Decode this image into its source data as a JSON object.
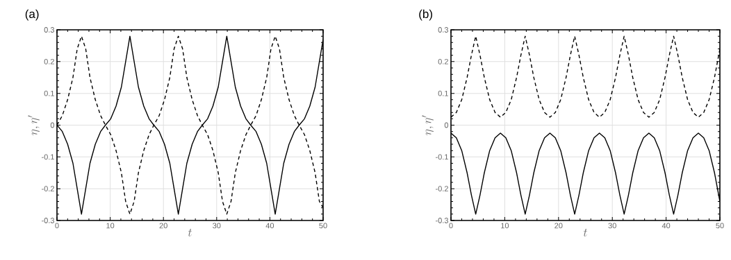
{
  "chart_data": [
    {
      "type": "line",
      "title": "(a)",
      "xlabel": "t",
      "ylabel": "\\eta, \\eta'",
      "grid": true,
      "xlim": [
        0,
        50
      ],
      "ylim": [
        -0.3,
        0.3
      ],
      "xticks": [
        0,
        10,
        20,
        30,
        40,
        50
      ],
      "yticks": [
        -0.3,
        -0.2,
        -0.1,
        0,
        0.1,
        0.2,
        0.3
      ],
      "x": [
        0,
        1,
        2,
        3,
        3.8,
        4.6,
        5.4,
        6.2,
        7.2,
        8.2,
        9.1,
        10.1,
        11.1,
        12.1,
        12.9,
        13.7,
        14.5,
        15.3,
        16.3,
        17.3,
        18.2,
        19.2,
        20.2,
        21.2,
        22,
        22.8,
        23.6,
        24.4,
        25.4,
        26.4,
        27.3,
        28.3,
        29.3,
        30.3,
        31.1,
        31.9,
        32.7,
        33.5,
        34.5,
        35.5,
        36.4,
        37.4,
        38.4,
        39.4,
        40.2,
        41,
        41.8,
        42.6,
        43.6,
        44.6,
        45.5,
        46.5,
        47.5,
        48.5,
        49.3,
        50
      ],
      "series": [
        {
          "color": "#000000",
          "line_style": "solid",
          "values": [
            0,
            -0.02,
            -0.06,
            -0.12,
            -0.2,
            -0.28,
            -0.2,
            -0.12,
            -0.06,
            -0.02,
            0,
            0.02,
            0.06,
            0.12,
            0.2,
            0.28,
            0.2,
            0.12,
            0.06,
            0.02,
            0,
            -0.02,
            -0.06,
            -0.12,
            -0.2,
            -0.28,
            -0.2,
            -0.12,
            -0.06,
            -0.02,
            0,
            0.02,
            0.06,
            0.12,
            0.2,
            0.28,
            0.2,
            0.12,
            0.06,
            0.02,
            0,
            -0.02,
            -0.06,
            -0.12,
            -0.2,
            -0.28,
            -0.2,
            -0.12,
            -0.06,
            -0.02,
            0,
            0.02,
            0.06,
            0.12,
            0.2,
            0.27
          ]
        },
        {
          "color": "#000000",
          "line_style": "dashed",
          "values": [
            0,
            0.03,
            0.08,
            0.15,
            0.24,
            0.28,
            0.24,
            0.15,
            0.08,
            0.03,
            0,
            -0.03,
            -0.08,
            -0.15,
            -0.24,
            -0.28,
            -0.24,
            -0.15,
            -0.08,
            -0.03,
            0,
            0.03,
            0.08,
            0.15,
            0.24,
            0.28,
            0.24,
            0.15,
            0.08,
            0.03,
            0,
            -0.03,
            -0.08,
            -0.15,
            -0.24,
            -0.28,
            -0.24,
            -0.15,
            -0.08,
            -0.03,
            0,
            0.03,
            0.08,
            0.15,
            0.24,
            0.28,
            0.24,
            0.15,
            0.08,
            0.03,
            0,
            -0.03,
            -0.08,
            -0.15,
            -0.24,
            -0.26
          ]
        }
      ]
    },
    {
      "type": "line",
      "title": "(b)",
      "xlabel": "t",
      "ylabel": "\\eta, \\eta'",
      "grid": true,
      "xlim": [
        0,
        50
      ],
      "ylim": [
        -0.3,
        0.3
      ],
      "xticks": [
        0,
        10,
        20,
        30,
        40,
        50
      ],
      "yticks": [
        -0.3,
        -0.2,
        -0.1,
        0,
        0.1,
        0.2,
        0.3
      ],
      "x": [
        0,
        1,
        2,
        3,
        3.8,
        4.6,
        5.4,
        6.2,
        7.2,
        8.2,
        9.2,
        10.2,
        11.2,
        12.2,
        13,
        13.8,
        14.6,
        15.4,
        16.4,
        17.4,
        18.4,
        19.4,
        20.4,
        21.4,
        22.2,
        23,
        23.8,
        24.6,
        25.6,
        26.6,
        27.6,
        28.6,
        29.6,
        30.6,
        31.4,
        32.2,
        33,
        33.8,
        34.8,
        35.8,
        36.8,
        37.8,
        38.8,
        39.8,
        40.6,
        41.4,
        42.2,
        43,
        44,
        45,
        46,
        47,
        48,
        49,
        50
      ],
      "series": [
        {
          "color": "#000000",
          "line_style": "solid",
          "values": [
            -0.025,
            -0.04,
            -0.08,
            -0.15,
            -0.22,
            -0.28,
            -0.22,
            -0.15,
            -0.08,
            -0.04,
            -0.025,
            -0.04,
            -0.08,
            -0.15,
            -0.22,
            -0.28,
            -0.22,
            -0.15,
            -0.08,
            -0.04,
            -0.025,
            -0.04,
            -0.08,
            -0.15,
            -0.22,
            -0.28,
            -0.22,
            -0.15,
            -0.08,
            -0.04,
            -0.025,
            -0.04,
            -0.08,
            -0.15,
            -0.22,
            -0.28,
            -0.22,
            -0.15,
            -0.08,
            -0.04,
            -0.025,
            -0.04,
            -0.08,
            -0.15,
            -0.22,
            -0.28,
            -0.22,
            -0.15,
            -0.08,
            -0.04,
            -0.025,
            -0.04,
            -0.08,
            -0.15,
            -0.24
          ]
        },
        {
          "color": "#000000",
          "line_style": "dashed",
          "values": [
            0.025,
            0.04,
            0.08,
            0.15,
            0.22,
            0.28,
            0.22,
            0.15,
            0.08,
            0.04,
            0.025,
            0.04,
            0.08,
            0.15,
            0.22,
            0.28,
            0.22,
            0.15,
            0.08,
            0.04,
            0.025,
            0.04,
            0.08,
            0.15,
            0.22,
            0.28,
            0.22,
            0.15,
            0.08,
            0.04,
            0.025,
            0.04,
            0.08,
            0.15,
            0.22,
            0.28,
            0.22,
            0.15,
            0.08,
            0.04,
            0.025,
            0.04,
            0.08,
            0.15,
            0.22,
            0.28,
            0.22,
            0.15,
            0.08,
            0.04,
            0.025,
            0.04,
            0.08,
            0.15,
            0.24
          ]
        }
      ]
    }
  ]
}
